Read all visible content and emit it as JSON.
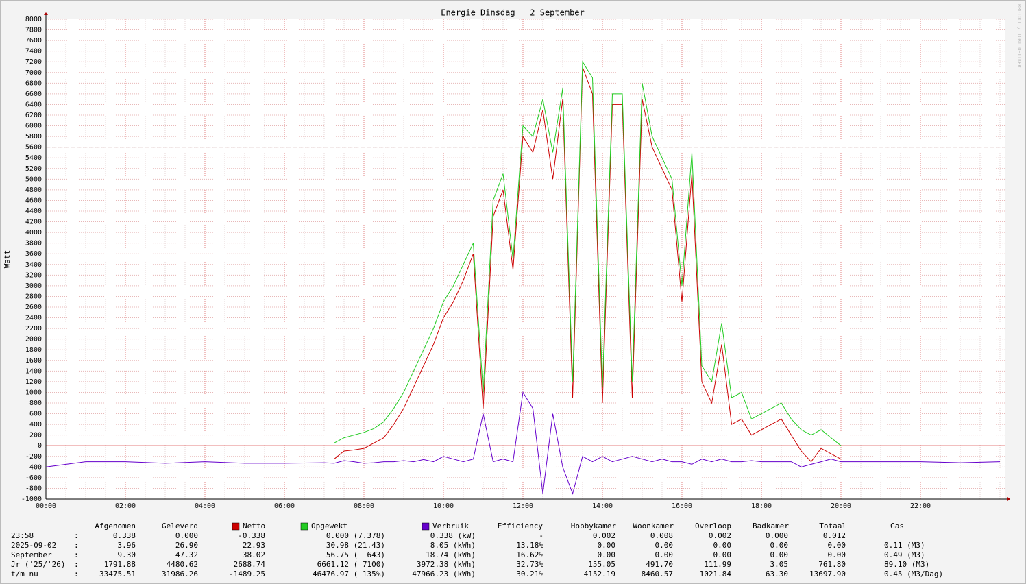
{
  "chart_data": {
    "type": "line",
    "title": "Energie Dinsdag   2 September",
    "y_label": "Watt",
    "side_text": "RRDTOOL / TOBI OETIKER",
    "x": [
      0,
      1,
      2,
      3,
      4,
      5,
      6,
      7,
      7.25,
      7.5,
      7.75,
      8,
      8.25,
      8.5,
      8.75,
      9,
      9.25,
      9.5,
      9.75,
      10,
      10.25,
      10.5,
      10.75,
      11,
      11.25,
      11.5,
      11.75,
      12,
      12.25,
      12.5,
      12.75,
      13,
      13.25,
      13.5,
      13.75,
      14,
      14.25,
      14.5,
      14.75,
      15,
      15.25,
      15.5,
      15.75,
      16,
      16.25,
      16.5,
      16.75,
      17,
      17.25,
      17.5,
      17.75,
      18,
      18.25,
      18.5,
      18.75,
      19,
      19.25,
      19.5,
      19.75,
      20,
      21,
      22,
      23,
      24
    ],
    "xlim": [
      0,
      24
    ],
    "xticks": [
      {
        "value": 0,
        "label": "00:00"
      },
      {
        "value": 2,
        "label": "02:00"
      },
      {
        "value": 4,
        "label": "04:00"
      },
      {
        "value": 6,
        "label": "06:00"
      },
      {
        "value": 8,
        "label": "08:00"
      },
      {
        "value": 10,
        "label": "10:00"
      },
      {
        "value": 12,
        "label": "12:00"
      },
      {
        "value": 14,
        "label": "14:00"
      },
      {
        "value": 16,
        "label": "16:00"
      },
      {
        "value": 18,
        "label": "18:00"
      },
      {
        "value": 20,
        "label": "20:00"
      },
      {
        "value": 22,
        "label": "22:00"
      }
    ],
    "ylim": [
      -1000,
      8000
    ],
    "yticks": [
      -1000,
      -800,
      -600,
      -400,
      -200,
      0,
      200,
      400,
      600,
      800,
      1000,
      1200,
      1400,
      1600,
      1800,
      2000,
      2200,
      2400,
      2600,
      2800,
      3000,
      3200,
      3400,
      3600,
      3800,
      4000,
      4200,
      4400,
      4600,
      4800,
      5000,
      5200,
      5400,
      5600,
      5800,
      6000,
      6200,
      6400,
      6600,
      6800,
      7000,
      7200,
      7400,
      7600,
      7800,
      8000
    ],
    "grid": true,
    "threshold": 5600,
    "series": [
      {
        "name": "Netto",
        "color": "#cc0000",
        "values": [
          null,
          null,
          null,
          null,
          null,
          null,
          null,
          null,
          -250,
          -100,
          -80,
          -50,
          50,
          150,
          400,
          700,
          1100,
          1500,
          1900,
          2400,
          2700,
          3100,
          3600,
          700,
          4300,
          4800,
          3300,
          5800,
          5500,
          6300,
          5000,
          6500,
          900,
          7100,
          6600,
          800,
          6400,
          6400,
          900,
          6500,
          5600,
          5200,
          4800,
          2700,
          5100,
          1200,
          800,
          1900,
          400,
          500,
          200,
          300,
          400,
          500,
          200,
          -100,
          -300,
          -50,
          -150,
          -250,
          null,
          null,
          null,
          null
        ]
      },
      {
        "name": "Opgewekt",
        "color": "#22cc22",
        "values": [
          null,
          null,
          null,
          null,
          null,
          null,
          null,
          null,
          50,
          150,
          200,
          250,
          320,
          450,
          700,
          1000,
          1400,
          1800,
          2200,
          2700,
          3000,
          3400,
          3800,
          1000,
          4600,
          5100,
          3500,
          6000,
          5800,
          6500,
          5500,
          6700,
          1200,
          7200,
          6900,
          1100,
          6600,
          6600,
          1200,
          6800,
          5800,
          5400,
          5000,
          3000,
          5500,
          1500,
          1200,
          2300,
          900,
          1000,
          500,
          600,
          700,
          800,
          500,
          300,
          200,
          300,
          150,
          0,
          null,
          null,
          null,
          null
        ]
      },
      {
        "name": "Verbruik",
        "color": "#6600cc",
        "values": [
          -400,
          -300,
          -300,
          -330,
          -300,
          -330,
          -330,
          -320,
          -330,
          -280,
          -300,
          -330,
          -320,
          -300,
          -300,
          -280,
          -300,
          -260,
          -300,
          -200,
          -250,
          -300,
          -250,
          600,
          -300,
          -250,
          -300,
          1000,
          700,
          -900,
          600,
          -400,
          -900,
          -200,
          -300,
          -200,
          -300,
          -250,
          -200,
          -250,
          -300,
          -250,
          -300,
          -300,
          -350,
          -250,
          -300,
          -250,
          -300,
          -300,
          -280,
          -300,
          -300,
          -300,
          -300,
          -400,
          -350,
          -300,
          -250,
          -300,
          -300,
          -300,
          -320,
          -300
        ]
      }
    ]
  },
  "table": {
    "columns": [
      "Afgenomen",
      "Geleverd",
      "Efficiency",
      "Hobbykamer",
      "Woonkamer",
      "Overloop",
      "Badkamer",
      "Totaal",
      "Gas"
    ],
    "rows": [
      [
        "23:58",
        ":",
        "0.338",
        "0.000",
        "-0.338",
        "0.000 (7.378)",
        "0.338 (kW)",
        "-",
        "0.002",
        "0.008",
        "0.002",
        "0.000",
        "0.012"
      ],
      [
        "2025-09-02",
        ":",
        "3.96",
        "26.90",
        "22.93",
        "30.98 (21.43)",
        "8.05 (kWh)",
        "13.18%",
        "0.00",
        "0.00",
        "0.00",
        "0.00",
        "0.00",
        "0.11 (M3)"
      ],
      [
        "September",
        ":",
        "9.30",
        "47.32",
        "38.02",
        "56.75 (  643)",
        "18.74 (kWh)",
        "16.62%",
        "0.00",
        "0.00",
        "0.00",
        "0.00",
        "0.00",
        "0.49 (M3)"
      ],
      [
        "Jr ('25/'26)",
        ":",
        "1791.88",
        "4480.62",
        "2688.74",
        "6661.12 ( 7100)",
        "3972.38 (kWh)",
        "32.73%",
        "155.05",
        "491.70",
        "111.99",
        "3.05",
        "761.80",
        "89.10 (M3)"
      ],
      [
        "t/m nu",
        ":",
        "33475.51",
        "31986.26",
        "-1489.25",
        "46476.97 ( 135%)",
        "47966.23 (kWh)",
        "30.21%",
        "4152.19",
        "8460.57",
        "1021.84",
        "63.30",
        "13697.90",
        "0.45 (M3/Dag)"
      ]
    ]
  }
}
